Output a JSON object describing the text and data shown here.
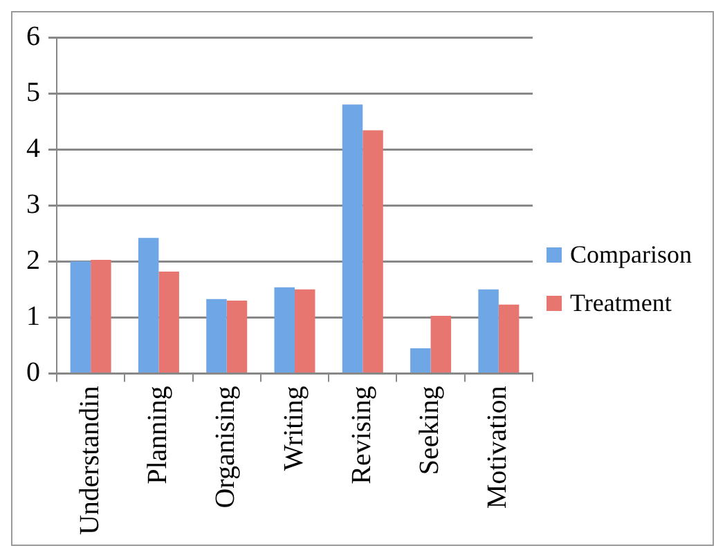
{
  "chart_data": {
    "type": "bar",
    "categories": [
      "Understandin",
      "Planning",
      "Organising",
      "Writing",
      "Revising",
      "Seeking",
      "Motivation"
    ],
    "series": [
      {
        "name": "Comparison",
        "color": "#6fa6e6",
        "values": [
          2.0,
          2.42,
          1.33,
          1.54,
          4.8,
          0.45,
          1.5
        ]
      },
      {
        "name": "Treatment",
        "color": "#e87670",
        "values": [
          2.03,
          1.82,
          1.3,
          1.5,
          4.34,
          1.03,
          1.23
        ]
      }
    ],
    "ylim": [
      0,
      6
    ],
    "yticks": [
      0,
      1,
      2,
      3,
      4,
      5,
      6
    ],
    "grid": "y",
    "legend": "right"
  }
}
